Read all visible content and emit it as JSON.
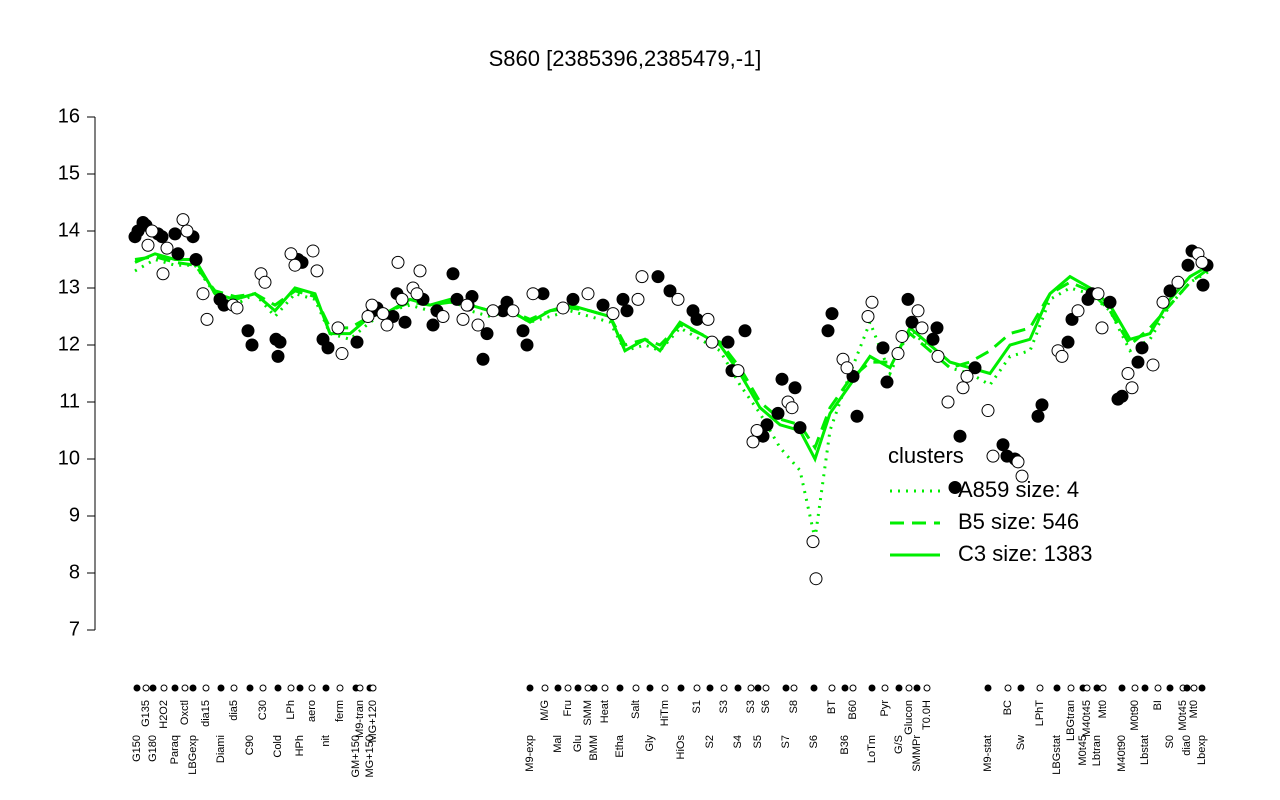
{
  "chart_data": {
    "type": "scatter",
    "title": "S860 [2385396,2385479,-1]",
    "xlim": [
      0,
      1080
    ],
    "ylim": [
      7,
      16
    ],
    "yticks": [
      7,
      8,
      9,
      10,
      11,
      12,
      13,
      14,
      15,
      16
    ],
    "xticks": [
      {
        "value": 5,
        "label": "G150"
      },
      {
        "value": 14,
        "label": "G135"
      },
      {
        "value": 21,
        "label": "G180"
      },
      {
        "value": 32,
        "label": "H2O2"
      },
      {
        "value": 43,
        "label": "Paraq"
      },
      {
        "value": 53,
        "label": "Oxctl"
      },
      {
        "value": 61,
        "label": "LBGexp"
      },
      {
        "value": 74,
        "label": "dia15"
      },
      {
        "value": 89,
        "label": "Diami"
      },
      {
        "value": 102,
        "label": "dia5"
      },
      {
        "value": 118,
        "label": "C90"
      },
      {
        "value": 131,
        "label": "C30"
      },
      {
        "value": 146,
        "label": "Cold"
      },
      {
        "value": 159,
        "label": "LPh"
      },
      {
        "value": 168,
        "label": "HPh"
      },
      {
        "value": 180,
        "label": "aero"
      },
      {
        "value": 194,
        "label": "nit"
      },
      {
        "value": 208,
        "label": "ferm"
      },
      {
        "value": 224,
        "label": "GM+150"
      },
      {
        "value": 228,
        "label": "M9-tran"
      },
      {
        "value": 238,
        "label": "MG+150"
      },
      {
        "value": 241,
        "label": "MG+120"
      },
      {
        "value": 398,
        "label": "M9-exp"
      },
      {
        "value": 413,
        "label": "M/G"
      },
      {
        "value": 426,
        "label": "Mal"
      },
      {
        "value": 436,
        "label": "Fru"
      },
      {
        "value": 446,
        "label": "Glu"
      },
      {
        "value": 456,
        "label": "SMM"
      },
      {
        "value": 462,
        "label": "BMM"
      },
      {
        "value": 473,
        "label": "Heat"
      },
      {
        "value": 488,
        "label": "Etha"
      },
      {
        "value": 504,
        "label": "Salt"
      },
      {
        "value": 518,
        "label": "Gly"
      },
      {
        "value": 533,
        "label": "HiTm"
      },
      {
        "value": 549,
        "label": "HiOs"
      },
      {
        "value": 565,
        "label": "S1"
      },
      {
        "value": 578,
        "label": "S2"
      },
      {
        "value": 592,
        "label": "S3"
      },
      {
        "value": 606,
        "label": "S4"
      },
      {
        "value": 619,
        "label": "S3"
      },
      {
        "value": 626,
        "label": "S5"
      },
      {
        "value": 634,
        "label": "S6"
      },
      {
        "value": 654,
        "label": "S7"
      },
      {
        "value": 662,
        "label": "S8"
      },
      {
        "value": 682,
        "label": "S6"
      },
      {
        "value": 700,
        "label": "BT"
      },
      {
        "value": 713,
        "label": "B36"
      },
      {
        "value": 721,
        "label": "B60"
      },
      {
        "value": 740,
        "label": "LoTm"
      },
      {
        "value": 753,
        "label": "Pyr"
      },
      {
        "value": 767,
        "label": "G/S"
      },
      {
        "value": 777,
        "label": "Glucon"
      },
      {
        "value": 785,
        "label": "SMMPr"
      },
      {
        "value": 795,
        "label": "T0.0H"
      },
      {
        "value": 856,
        "label": "M9-stat"
      },
      {
        "value": 876,
        "label": "BC"
      },
      {
        "value": 889,
        "label": "Sw"
      },
      {
        "value": 908,
        "label": "LPhT"
      },
      {
        "value": 925,
        "label": "LBGstat"
      },
      {
        "value": 939,
        "label": "LBGtran"
      },
      {
        "value": 951,
        "label": "M0t45"
      },
      {
        "value": 955,
        "label": "M40t45"
      },
      {
        "value": 965,
        "label": "Lbtran"
      },
      {
        "value": 971,
        "label": "Mt0"
      },
      {
        "value": 990,
        "label": "M40t90"
      },
      {
        "value": 1003,
        "label": "M0t90"
      },
      {
        "value": 1013,
        "label": "Lbstat"
      },
      {
        "value": 1026,
        "label": "BI"
      },
      {
        "value": 1038,
        "label": "S0"
      },
      {
        "value": 1051,
        "label": "M0t45"
      },
      {
        "value": 1055,
        "label": "dia0"
      },
      {
        "value": 1062,
        "label": "Mt0"
      },
      {
        "value": 1070,
        "label": "Lbexp"
      }
    ],
    "legend_title": "clusters",
    "legend": "bottomright",
    "series": [
      {
        "style": "point",
        "color": "#000000",
        "x": [
          3,
          6,
          11,
          14,
          26,
          30,
          43,
          46,
          61,
          64,
          88,
          92,
          116,
          120,
          144,
          146,
          148,
          166,
          170,
          191,
          196,
          225,
          241,
          245,
          261,
          265,
          273,
          291,
          301,
          305,
          321,
          325,
          336,
          340,
          351,
          355,
          371,
          375,
          391,
          395,
          411,
          441,
          471,
          491,
          495,
          526,
          538,
          561,
          565,
          596,
          600,
          613,
          631,
          635,
          646,
          650,
          663,
          668,
          696,
          700,
          721,
          725,
          751,
          755,
          776,
          780,
          801,
          805,
          823,
          828,
          843,
          871,
          875,
          883,
          906,
          910,
          936,
          940,
          956,
          960,
          978,
          986,
          990,
          1006,
          1010,
          1038,
          1056,
          1060,
          1071,
          1075
        ],
        "values": [
          13.9,
          14.0,
          14.15,
          14.1,
          13.95,
          13.9,
          13.95,
          13.6,
          13.9,
          13.5,
          12.8,
          12.7,
          12.25,
          12.0,
          12.1,
          11.8,
          12.05,
          13.5,
          13.45,
          12.1,
          11.95,
          12.05,
          12.6,
          12.65,
          12.5,
          12.9,
          12.4,
          12.8,
          12.35,
          12.6,
          13.25,
          12.8,
          12.7,
          12.85,
          11.75,
          12.2,
          12.6,
          12.75,
          12.25,
          12.0,
          12.9,
          12.8,
          12.7,
          12.8,
          12.6,
          13.2,
          12.95,
          12.6,
          12.45,
          12.05,
          11.55,
          12.25,
          10.4,
          10.6,
          10.8,
          11.4,
          11.25,
          10.55,
          12.25,
          12.55,
          11.45,
          10.75,
          11.95,
          11.35,
          12.8,
          12.4,
          12.1,
          12.3,
          9.5,
          10.4,
          11.6,
          10.25,
          10.05,
          10.0,
          10.75,
          10.95,
          12.05,
          12.45,
          12.8,
          12.9,
          12.75,
          11.05,
          11.1,
          11.7,
          11.95,
          12.95,
          13.4,
          13.65,
          13.05,
          13.4
        ]
      },
      {
        "style": "point",
        "color": "#ffffff",
        "x": [
          16,
          20,
          31,
          35,
          51,
          55,
          71,
          75,
          101,
          105,
          129,
          133,
          159,
          163,
          181,
          185,
          206,
          210,
          236,
          240,
          251,
          255,
          266,
          270,
          281,
          285,
          288,
          311,
          331,
          335,
          346,
          361,
          381,
          401,
          431,
          456,
          481,
          506,
          510,
          546,
          576,
          580,
          606,
          621,
          625,
          656,
          660,
          681,
          684,
          711,
          715,
          736,
          740,
          766,
          770,
          786,
          790,
          806,
          816,
          831,
          835,
          856,
          861,
          886,
          890,
          926,
          930,
          946,
          966,
          970,
          996,
          1000,
          1021,
          1031,
          1046,
          1066,
          1070
        ],
        "values": [
          13.75,
          14.0,
          13.25,
          13.7,
          14.2,
          14.0,
          12.9,
          12.45,
          12.7,
          12.65,
          13.25,
          13.1,
          13.6,
          13.4,
          13.65,
          13.3,
          12.3,
          11.85,
          12.5,
          12.7,
          12.55,
          12.35,
          13.45,
          12.8,
          13.0,
          12.9,
          13.3,
          12.5,
          12.45,
          12.7,
          12.35,
          12.6,
          12.6,
          12.9,
          12.65,
          12.9,
          12.55,
          12.8,
          13.2,
          12.8,
          12.45,
          12.05,
          11.55,
          10.3,
          10.5,
          11.0,
          10.9,
          8.55,
          7.9,
          11.75,
          11.6,
          12.5,
          12.75,
          11.85,
          12.15,
          12.6,
          12.3,
          11.8,
          11.0,
          11.25,
          11.45,
          10.85,
          10.05,
          9.95,
          9.7,
          11.9,
          11.8,
          12.6,
          12.9,
          12.3,
          11.5,
          11.25,
          11.65,
          12.75,
          13.1,
          13.6,
          13.45
        ]
      },
      {
        "name": "A859 size: 4",
        "style": "dotted",
        "color": "#00ee00",
        "x": [
          3,
          23,
          43,
          63,
          83,
          103,
          123,
          143,
          163,
          183,
          198,
          218,
          238,
          258,
          278,
          298,
          318,
          338,
          358,
          378,
          398,
          418,
          438,
          458,
          478,
          493,
          513,
          528,
          548,
          568,
          588,
          608,
          628,
          648,
          668,
          683,
          698,
          718,
          738,
          758,
          778,
          798,
          818,
          838,
          858,
          878,
          898,
          918,
          938,
          958,
          978,
          998,
          1018,
          1038,
          1058,
          1078
        ],
        "values": [
          13.3,
          13.5,
          13.4,
          13.4,
          12.9,
          12.7,
          12.9,
          12.5,
          12.9,
          12.8,
          12.2,
          12.1,
          12.4,
          12.6,
          12.7,
          12.6,
          12.8,
          12.6,
          12.5,
          12.6,
          12.4,
          12.5,
          12.6,
          12.5,
          12.4,
          11.9,
          12.0,
          11.9,
          12.3,
          12.1,
          11.9,
          11.3,
          10.8,
          10.2,
          9.8,
          8.6,
          10.5,
          11.5,
          12.4,
          11.5,
          12.3,
          11.9,
          11.6,
          11.5,
          11.3,
          11.8,
          11.9,
          12.8,
          13.0,
          12.9,
          12.6,
          11.9,
          12.1,
          12.7,
          13.1,
          13.3
        ]
      },
      {
        "name": "B5 size: 546",
        "style": "dashed",
        "color": "#00ee00",
        "x": [
          3,
          23,
          43,
          63,
          83,
          103,
          123,
          143,
          163,
          183,
          198,
          218,
          238,
          258,
          278,
          298,
          318,
          338,
          358,
          378,
          398,
          418,
          438,
          458,
          478,
          493,
          513,
          528,
          548,
          568,
          588,
          608,
          628,
          648,
          668,
          683,
          698,
          718,
          738,
          758,
          778,
          798,
          818,
          838,
          858,
          878,
          898,
          918,
          938,
          958,
          978,
          998,
          1018,
          1038,
          1058,
          1078
        ],
        "values": [
          13.5,
          13.55,
          13.45,
          13.4,
          12.95,
          12.85,
          12.9,
          12.7,
          12.95,
          12.85,
          12.3,
          12.3,
          12.5,
          12.6,
          12.75,
          12.7,
          12.75,
          12.7,
          12.6,
          12.6,
          12.45,
          12.6,
          12.65,
          12.6,
          12.5,
          12.0,
          12.1,
          12.0,
          12.35,
          12.2,
          12.05,
          11.6,
          11.0,
          10.7,
          10.6,
          10.2,
          10.9,
          11.4,
          11.7,
          11.7,
          12.2,
          11.9,
          11.6,
          11.7,
          11.9,
          12.2,
          12.3,
          12.9,
          13.1,
          12.95,
          12.6,
          12.0,
          12.3,
          12.7,
          13.1,
          13.35
        ]
      },
      {
        "name": "C3 size: 1383",
        "style": "solid",
        "color": "#00ee00",
        "x": [
          3,
          23,
          43,
          63,
          83,
          103,
          123,
          143,
          163,
          183,
          198,
          218,
          238,
          258,
          278,
          298,
          318,
          338,
          358,
          378,
          398,
          418,
          438,
          458,
          478,
          493,
          513,
          528,
          548,
          568,
          588,
          608,
          628,
          648,
          668,
          683,
          698,
          718,
          738,
          758,
          778,
          798,
          818,
          838,
          858,
          878,
          898,
          918,
          938,
          958,
          978,
          998,
          1018,
          1038,
          1058,
          1078
        ],
        "values": [
          13.45,
          13.6,
          13.5,
          13.5,
          12.9,
          12.8,
          12.9,
          12.6,
          13.0,
          12.9,
          12.2,
          12.2,
          12.5,
          12.6,
          12.8,
          12.7,
          12.8,
          12.7,
          12.6,
          12.6,
          12.4,
          12.6,
          12.7,
          12.6,
          12.5,
          11.9,
          12.1,
          11.9,
          12.4,
          12.2,
          12.0,
          11.5,
          10.9,
          10.6,
          10.5,
          10.0,
          10.8,
          11.3,
          11.8,
          11.6,
          12.3,
          12.0,
          11.7,
          11.6,
          11.5,
          12.0,
          12.1,
          12.9,
          13.2,
          13.0,
          12.7,
          12.1,
          12.2,
          12.8,
          13.2,
          13.4
        ]
      }
    ]
  }
}
